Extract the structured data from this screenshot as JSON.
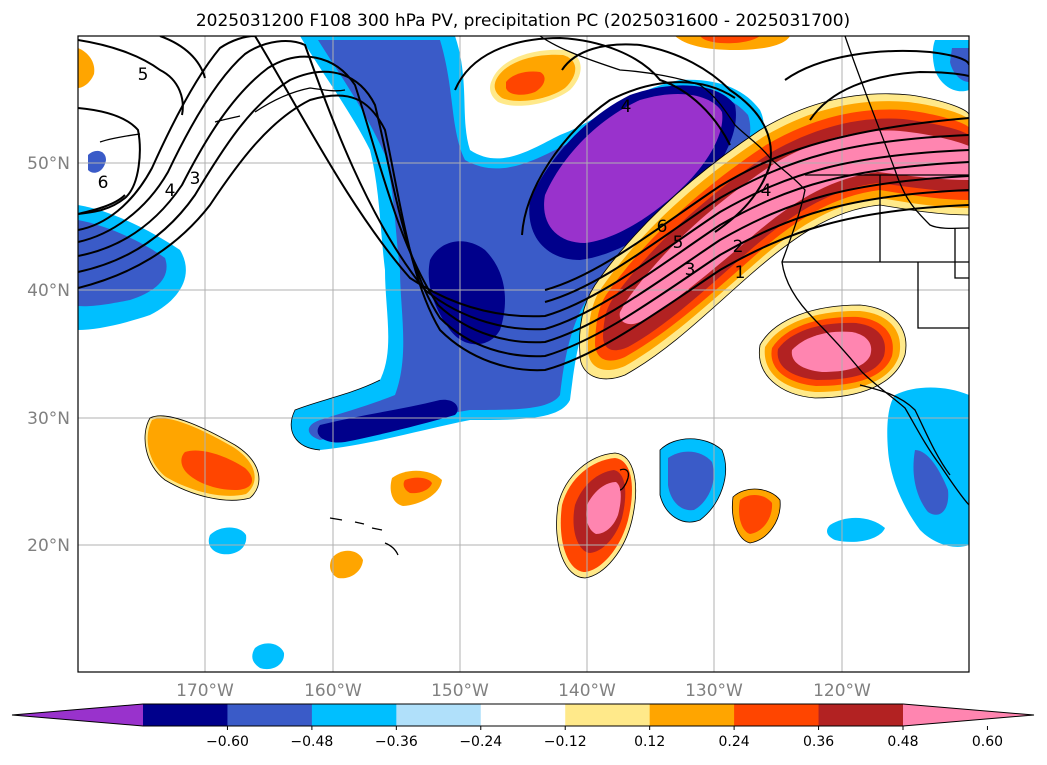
{
  "title": "2025031200 F108 300 hPa PV, precipitation PC (2025031600 - 2025031700)",
  "map": {
    "lon_labels": [
      "170°W",
      "160°W",
      "150°W",
      "140°W",
      "130°W",
      "120°W"
    ],
    "lat_labels": [
      "20°N",
      "30°N",
      "40°N",
      "50°N"
    ],
    "lon_range": [
      -180,
      -110
    ],
    "lat_range": [
      10,
      60
    ],
    "gridlines": true,
    "contour_labels": [
      "5",
      "6",
      "4",
      "3",
      "4",
      "6",
      "5",
      "3",
      "2",
      "1",
      "4"
    ]
  },
  "colorbar": {
    "ticks": [
      "−0.60",
      "−0.48",
      "−0.36",
      "−0.24",
      "−0.12",
      "0.12",
      "0.24",
      "0.36",
      "0.48",
      "0.60"
    ],
    "colors": [
      "#9932cc",
      "#00008b",
      "#3a5bc8",
      "#00bfff",
      "#b0e0fa",
      "#ffffff",
      "#ffe98a",
      "#ffa500",
      "#ff4500",
      "#b22222",
      "#ff85b0"
    ],
    "extend": "both"
  }
}
